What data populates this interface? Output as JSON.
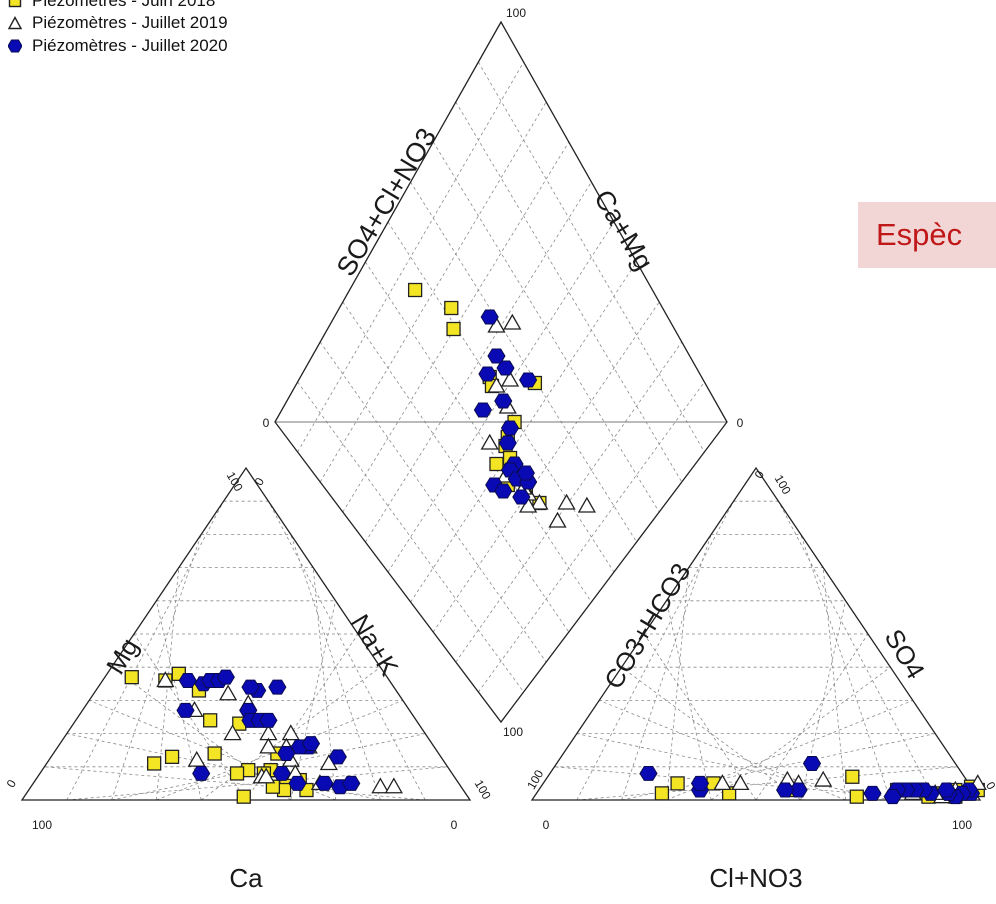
{
  "legend": [
    {
      "label": "Piézomètres - Juin 2018",
      "marker": "square",
      "fill": "#f4e524",
      "stroke": "#222222"
    },
    {
      "label": "Piézomètres - Juillet 2019",
      "marker": "triangle",
      "fill": "#ffffff",
      "stroke": "#222222"
    },
    {
      "label": "Piézomètres - Juillet 2020",
      "marker": "hexagon",
      "fill": "#0a0ab4",
      "stroke": "#0a0a50"
    }
  ],
  "callout": {
    "text": "Espèc"
  },
  "colors": {
    "grid": "#8a8a8a",
    "frame": "#222222",
    "callout_bg": "#f2d6d6",
    "callout_text": "#c01818"
  },
  "chart_data": {
    "type": "scatter",
    "subtype": "piper-diagram",
    "axes": {
      "cation_triangle": {
        "bottom": "Ca",
        "left": "Mg",
        "right": "Na+K",
        "ticks": {
          "bottom_left": "100",
          "bottom_right": "0",
          "top": "100",
          "top_alt": "0",
          "right_bottom": "100",
          "left_bottom": "0"
        }
      },
      "anion_triangle": {
        "bottom": "Cl+NO3",
        "left": "CO3+HCO3",
        "right": "SO4",
        "ticks": {
          "bottom_left": "0",
          "bottom_right": "100",
          "top": "100",
          "top_alt": "0",
          "left_bottom": "100",
          "right_bottom": "0"
        }
      },
      "diamond": {
        "upper_left": "SO4+Cl+NO3",
        "upper_right": "Ca+Mg",
        "ticks": {
          "top": "100",
          "left": "0",
          "right": "0",
          "bottom": "100"
        }
      }
    },
    "series": [
      {
        "name": "Piézomètres - Juin 2018",
        "cation": [
          [
            57,
            37
          ],
          [
            46,
            38
          ],
          [
            50,
            36
          ],
          [
            44,
            33
          ],
          [
            46,
            24
          ],
          [
            40,
            23
          ],
          [
            36,
            14
          ],
          [
            60,
            13
          ],
          [
            50,
            14
          ],
          [
            45,
            9
          ],
          [
            40,
            9
          ],
          [
            42,
            8
          ],
          [
            65,
            11
          ],
          [
            48,
            8
          ],
          [
            38,
            6
          ],
          [
            35,
            6
          ],
          [
            40,
            3
          ],
          [
            42,
            4
          ],
          [
            35,
            3
          ],
          [
            50,
            1
          ]
        ],
        "anion": [
          [
            98,
            3
          ],
          [
            96,
            4
          ],
          [
            94,
            1
          ],
          [
            93,
            3
          ],
          [
            90,
            2
          ],
          [
            86,
            2
          ],
          [
            80,
            3
          ],
          [
            72,
            1
          ],
          [
            68,
            7
          ],
          [
            88,
            1
          ],
          [
            56,
            3
          ],
          [
            43,
            2
          ],
          [
            38,
            5
          ],
          [
            30,
            5
          ],
          [
            28,
            2
          ]
        ],
        "diamond": [
          [
            91,
            53
          ],
          [
            80,
            58
          ],
          [
            76,
            55
          ],
          [
            60,
            55
          ],
          [
            58,
            54
          ],
          [
            49,
            64
          ],
          [
            47,
            53
          ],
          [
            46,
            49
          ],
          [
            45,
            47
          ],
          [
            42,
            46
          ],
          [
            44,
            42
          ],
          [
            38,
            41
          ],
          [
            33,
            44
          ],
          [
            28,
            45
          ]
        ]
      },
      {
        "name": "Piézomètres - Juillet 2019",
        "cation": [
          [
            50,
            36
          ],
          [
            38,
            32
          ],
          [
            48,
            27
          ],
          [
            35,
            29
          ],
          [
            43,
            20
          ],
          [
            35,
            20
          ],
          [
            30,
            20
          ],
          [
            37,
            16
          ],
          [
            33,
            16
          ],
          [
            28,
            16
          ],
          [
            55,
            12
          ],
          [
            34,
            12
          ],
          [
            26,
            11
          ],
          [
            43,
            7
          ],
          [
            42,
            7
          ],
          [
            18,
            4
          ],
          [
            15,
            4
          ],
          [
            35,
            8
          ],
          [
            31,
            5
          ]
        ],
        "anion": [
          [
            97,
            5
          ],
          [
            95,
            2
          ],
          [
            93,
            3
          ],
          [
            91,
            1
          ],
          [
            89,
            2
          ],
          [
            84,
            2
          ],
          [
            62,
            6
          ],
          [
            57,
            5
          ],
          [
            54,
            6
          ],
          [
            44,
            5
          ],
          [
            40,
            5
          ]
        ],
        "diamond": [
          [
            64,
            69
          ],
          [
            67,
            65
          ],
          [
            55,
            59
          ],
          [
            57,
            55
          ],
          [
            51,
            54
          ],
          [
            32,
            44
          ],
          [
            28,
            45
          ],
          [
            30,
            42
          ],
          [
            34,
            44
          ],
          [
            40,
            42
          ],
          [
            49,
            44
          ],
          [
            22,
            51
          ],
          [
            17,
            55
          ],
          [
            21,
            46
          ]
        ]
      },
      {
        "name": "Piézomètres - Juillet 2020",
        "cation": [
          [
            45,
            36
          ],
          [
            42,
            35
          ],
          [
            40,
            36
          ],
          [
            38,
            36
          ],
          [
            36,
            37
          ],
          [
            31,
            33
          ],
          [
            32,
            34
          ],
          [
            26,
            34
          ],
          [
            50,
            27
          ],
          [
            36,
            27
          ],
          [
            37,
            24
          ],
          [
            35,
            24
          ],
          [
            33,
            24
          ],
          [
            28,
            16
          ],
          [
            34,
            14
          ],
          [
            30,
            16
          ],
          [
            27,
            17
          ],
          [
            23,
            13
          ],
          [
            56,
            8
          ],
          [
            38,
            8
          ],
          [
            36,
            5
          ],
          [
            30,
            5
          ],
          [
            27,
            4
          ],
          [
            24,
            5
          ]
        ],
        "anion": [
          [
            97,
            2
          ],
          [
            96,
            3
          ],
          [
            95,
            2
          ],
          [
            94,
            1
          ],
          [
            92,
            2
          ],
          [
            91,
            3
          ],
          [
            88,
            2
          ],
          [
            86,
            3
          ],
          [
            84,
            3
          ],
          [
            82,
            3
          ],
          [
            80,
            3
          ],
          [
            80,
            1
          ],
          [
            75,
            2
          ],
          [
            57,
            11
          ],
          [
            58,
            3
          ],
          [
            55,
            3
          ],
          [
            36,
            3
          ],
          [
            35,
            5
          ],
          [
            22,
            8
          ]
        ],
        "diamond": [
          [
            51,
            63
          ],
          [
            58,
            60
          ],
          [
            70,
            65
          ],
          [
            61,
            55
          ],
          [
            62,
            60
          ],
          [
            53,
            54
          ],
          [
            56,
            48
          ],
          [
            47,
            51
          ],
          [
            45,
            48
          ],
          [
            40,
            46
          ],
          [
            40,
            44
          ],
          [
            37,
            44
          ],
          [
            34,
            46
          ],
          [
            41,
            38
          ],
          [
            38,
            39
          ],
          [
            33,
            42
          ],
          [
            36,
            47
          ]
        ]
      }
    ]
  }
}
